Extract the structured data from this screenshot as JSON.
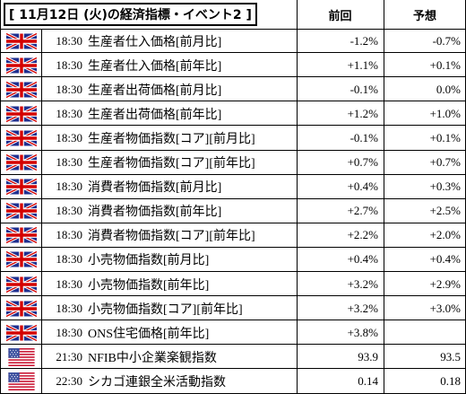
{
  "header": {
    "title": "[ 11月12日 (火)の経済指標・イベント2 ]",
    "col_prev": "前回",
    "col_forecast": "予想"
  },
  "colors": {
    "uk_blue": "#1f2f8f",
    "uk_red": "#d40000",
    "us_red": "#c8102e",
    "us_blue": "#3a4e9e"
  },
  "rows": [
    {
      "flag": "uk-flag-icon",
      "time": "18:30",
      "name": "生産者仕入価格[前月比]",
      "prev": "-1.2%",
      "forecast": "-0.7%"
    },
    {
      "flag": "uk-flag-icon",
      "time": "18:30",
      "name": "生産者仕入価格[前年比]",
      "prev": "+1.1%",
      "forecast": "+0.1%"
    },
    {
      "flag": "uk-flag-icon",
      "time": "18:30",
      "name": "生産者出荷価格[前月比]",
      "prev": "-0.1%",
      "forecast": "0.0%"
    },
    {
      "flag": "uk-flag-icon",
      "time": "18:30",
      "name": "生産者出荷価格[前年比]",
      "prev": "+1.2%",
      "forecast": "+1.0%"
    },
    {
      "flag": "uk-flag-icon",
      "time": "18:30",
      "name": "生産者物価指数[コア][前月比]",
      "prev": "-0.1%",
      "forecast": "+0.1%"
    },
    {
      "flag": "uk-flag-icon",
      "time": "18:30",
      "name": "生産者物価指数[コア][前年比]",
      "prev": "+0.7%",
      "forecast": "+0.7%"
    },
    {
      "flag": "uk-flag-icon",
      "time": "18:30",
      "name": "消費者物価指数[前月比]",
      "prev": "+0.4%",
      "forecast": "+0.3%"
    },
    {
      "flag": "uk-flag-icon",
      "time": "18:30",
      "name": "消費者物価指数[前年比]",
      "prev": "+2.7%",
      "forecast": "+2.5%"
    },
    {
      "flag": "uk-flag-icon",
      "time": "18:30",
      "name": "消費者物価指数[コア][前年比]",
      "prev": "+2.2%",
      "forecast": "+2.0%"
    },
    {
      "flag": "uk-flag-icon",
      "time": "18:30",
      "name": "小売物価指数[前月比]",
      "prev": "+0.4%",
      "forecast": "+0.4%"
    },
    {
      "flag": "uk-flag-icon",
      "time": "18:30",
      "name": "小売物価指数[前年比]",
      "prev": "+3.2%",
      "forecast": "+2.9%"
    },
    {
      "flag": "uk-flag-icon",
      "time": "18:30",
      "name": "小売物価指数[コア][前年比]",
      "prev": "+3.2%",
      "forecast": "+3.0%"
    },
    {
      "flag": "uk-flag-icon",
      "time": "18:30",
      "name": "ONS住宅価格[前年比]",
      "prev": "+3.8%",
      "forecast": ""
    },
    {
      "flag": "us-flag-icon",
      "time": "21:30",
      "name": "NFIB中小企業楽観指数",
      "prev": "93.9",
      "forecast": "93.5"
    },
    {
      "flag": "us-flag-icon",
      "time": "22:30",
      "name": "シカゴ連銀全米活動指数",
      "prev": "0.14",
      "forecast": "0.18"
    }
  ]
}
